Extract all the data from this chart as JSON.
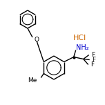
{
  "background_color": "#ffffff",
  "bond_color": "#000000",
  "text_color": "#000000",
  "blue_color": "#0000cd",
  "orange_color": "#cc6600",
  "figsize": [
    1.52,
    1.52
  ],
  "dpi": 100,
  "HCl_text": "HCl",
  "NH2_text": "NH₂",
  "O_text": "O",
  "F_texts": [
    "F",
    "F",
    "F"
  ],
  "Me_text": "Me"
}
